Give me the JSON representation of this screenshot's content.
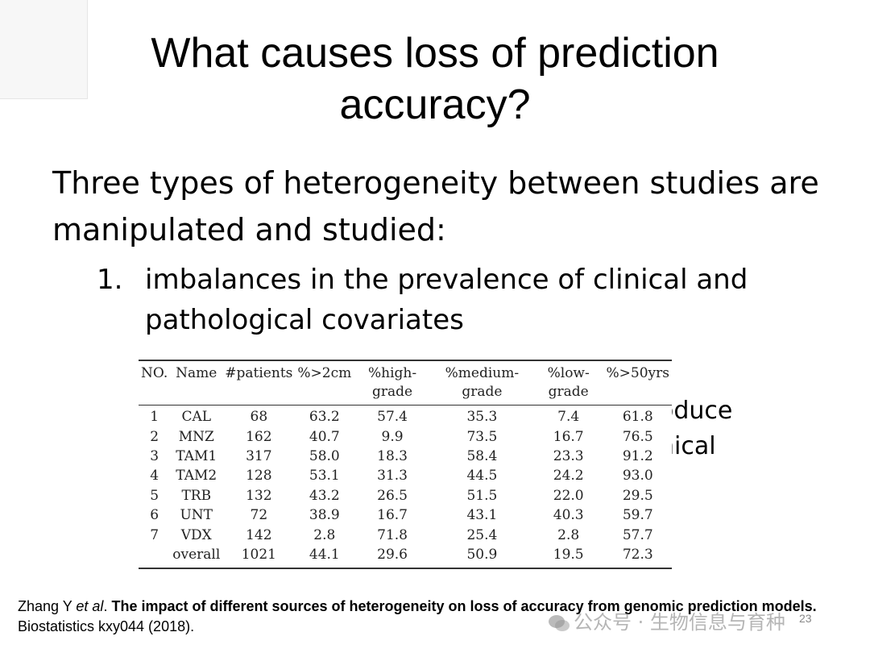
{
  "slide": {
    "title": "What causes loss of prediction accuracy?",
    "intro": "Three types of heterogeneity between studies are manipulated and studied:",
    "list_items": [
      {
        "number": "1.",
        "text": "imbalances in the prevalence of clinical and pathological covariates"
      }
    ],
    "partial_text": [
      "oduce",
      "nical"
    ],
    "page_number": "23"
  },
  "table": {
    "headers": [
      "NO.",
      "Name",
      "#patients",
      "%>2cm",
      "%high-grade",
      "%medium-grade",
      "%low-grade",
      "%>50yrs"
    ],
    "rows": [
      [
        "1",
        "CAL",
        "68",
        "63.2",
        "57.4",
        "35.3",
        "7.4",
        "61.8"
      ],
      [
        "2",
        "MNZ",
        "162",
        "40.7",
        "9.9",
        "73.5",
        "16.7",
        "76.5"
      ],
      [
        "3",
        "TAM1",
        "317",
        "58.0",
        "18.3",
        "58.4",
        "23.3",
        "91.2"
      ],
      [
        "4",
        "TAM2",
        "128",
        "53.1",
        "31.3",
        "44.5",
        "24.2",
        "93.0"
      ],
      [
        "5",
        "TRB",
        "132",
        "43.2",
        "26.5",
        "51.5",
        "22.0",
        "29.5"
      ],
      [
        "6",
        "UNT",
        "72",
        "38.9",
        "16.7",
        "43.1",
        "40.3",
        "59.7"
      ],
      [
        "7",
        "VDX",
        "142",
        "2.8",
        "71.8",
        "25.4",
        "2.8",
        "57.7"
      ],
      [
        "",
        "overall",
        "1021",
        "44.1",
        "29.6",
        "50.9",
        "19.5",
        "72.3"
      ]
    ]
  },
  "citation": {
    "author": "Zhang Y ",
    "etal": "et al",
    "dot": ". ",
    "title_bold": "The impact of different sources of heterogeneity on loss of accuracy from genomic prediction models.",
    "journal": " Biostatistics kxy044 (2018)."
  },
  "watermark": {
    "text": "公众号 · 生物信息与育种",
    "icon": "wechat-icon"
  }
}
